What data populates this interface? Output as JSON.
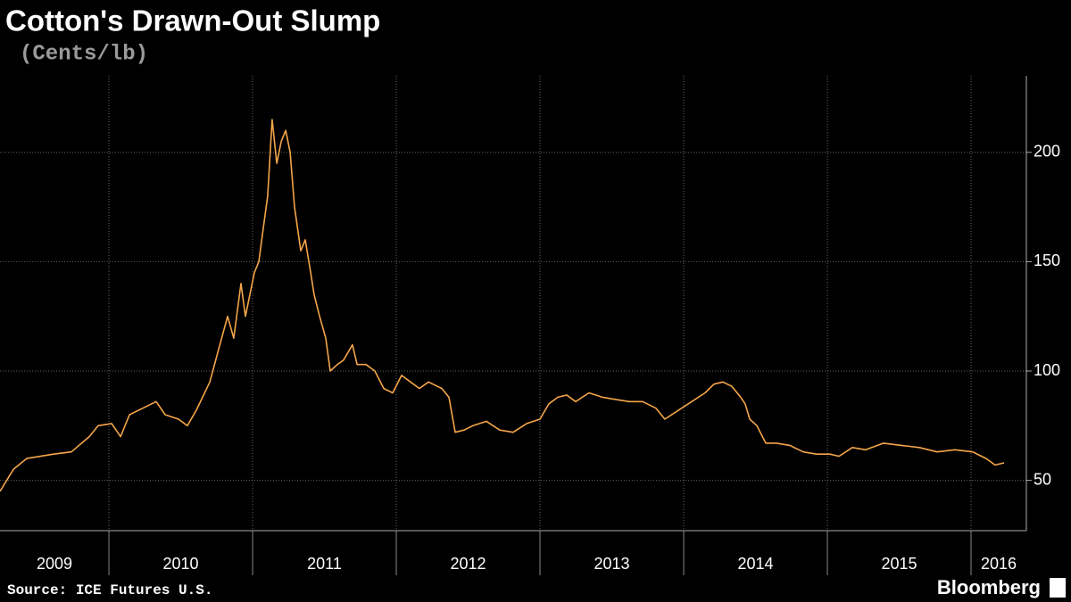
{
  "chart_data": {
    "type": "line",
    "title": "Cotton's Drawn-Out Slump",
    "subtitle": "(Cents/lb)",
    "source": "Source: ICE Futures U.S.",
    "brand": "Bloomberg",
    "x": [
      2009.242,
      2009.335,
      2009.428,
      2009.615,
      2009.739,
      2009.863,
      2009.925,
      2010.019,
      2010.081,
      2010.143,
      2010.236,
      2010.329,
      2010.391,
      2010.484,
      2010.546,
      2010.608,
      2010.702,
      2010.764,
      2010.826,
      2010.869,
      2010.919,
      2010.95,
      2011.012,
      2011.043,
      2011.074,
      2011.105,
      2011.136,
      2011.168,
      2011.199,
      2011.23,
      2011.261,
      2011.292,
      2011.335,
      2011.366,
      2011.404,
      2011.428,
      2011.466,
      2011.509,
      2011.54,
      2011.59,
      2011.633,
      2011.695,
      2011.727,
      2011.789,
      2011.851,
      2011.913,
      2011.975,
      2012.037,
      2012.099,
      2012.161,
      2012.224,
      2012.317,
      2012.366,
      2012.41,
      2012.472,
      2012.534,
      2012.627,
      2012.72,
      2012.813,
      2012.907,
      2013.0,
      2013.062,
      2013.124,
      2013.186,
      2013.248,
      2013.341,
      2013.435,
      2013.528,
      2013.621,
      2013.714,
      2013.807,
      2013.869,
      2013.963,
      2014.056,
      2014.149,
      2014.211,
      2014.273,
      2014.335,
      2014.397,
      2014.428,
      2014.46,
      2014.509,
      2014.571,
      2014.646,
      2014.739,
      2014.832,
      2014.925,
      2015.018,
      2015.081,
      2015.174,
      2015.267,
      2015.391,
      2015.515,
      2015.64,
      2015.764,
      2015.888,
      2016.012,
      2016.105,
      2016.167,
      2016.23
    ],
    "series": [
      {
        "name": "Cotton",
        "color": "#f5a54a",
        "values": [
          45,
          55,
          60,
          62,
          63,
          70,
          75,
          76,
          70,
          80,
          83,
          86,
          80,
          78,
          75,
          82,
          95,
          110,
          125,
          115,
          140,
          125,
          145,
          150,
          165,
          180,
          215,
          195,
          205,
          210,
          200,
          175,
          155,
          160,
          145,
          135,
          125,
          115,
          100,
          103,
          105,
          112,
          103,
          103,
          100,
          92,
          90,
          98,
          95,
          92,
          95,
          92,
          88,
          72,
          73,
          75,
          77,
          73,
          72,
          76,
          78,
          85,
          88,
          89,
          86,
          90,
          88,
          87,
          86,
          86,
          83,
          78,
          82,
          86,
          90,
          94,
          95,
          93,
          88,
          85,
          78,
          75,
          67,
          67,
          66,
          63,
          62,
          62,
          61,
          65,
          64,
          67,
          66,
          65,
          63,
          64,
          63,
          60,
          57,
          58
        ]
      }
    ],
    "xlim": [
      2009.242,
      2016.385
    ],
    "xticks": [
      2010,
      2011,
      2012,
      2013,
      2014,
      2015,
      2016
    ],
    "year_labels": [
      2009,
      2010,
      2011,
      2012,
      2013,
      2014,
      2015,
      2016
    ],
    "ylim": [
      27,
      235
    ],
    "yticks": [
      50,
      100,
      150,
      200
    ],
    "grid": true
  }
}
